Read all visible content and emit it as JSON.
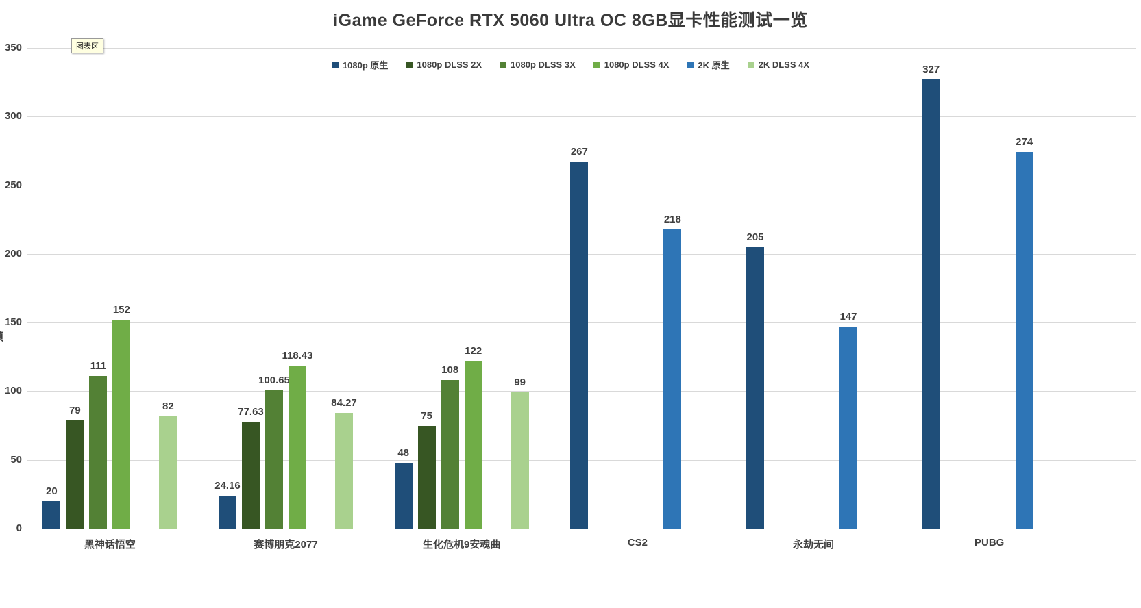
{
  "tooltip": "图表区",
  "y_axis_title_partial": "帧",
  "chart_data": {
    "type": "bar",
    "title": "iGame GeForce RTX 5060 Ultra OC 8GB显卡性能测试一览",
    "categories": [
      "黑神话悟空",
      "赛博朋克2077",
      "生化危机9安魂曲",
      "CS2",
      "永劫无间",
      "PUBG"
    ],
    "series": [
      {
        "name": "1080p 原生",
        "color": "#1F4E79",
        "values": [
          20,
          24.16,
          48,
          267,
          205,
          327
        ]
      },
      {
        "name": "1080p DLSS 2X",
        "color": "#375623",
        "values": [
          79,
          77.63,
          75,
          null,
          null,
          null
        ]
      },
      {
        "name": "1080p DLSS 3X",
        "color": "#538135",
        "values": [
          111,
          100.65,
          108,
          null,
          null,
          null
        ]
      },
      {
        "name": "1080p DLSS 4X",
        "color": "#70AD47",
        "values": [
          152,
          118.43,
          122,
          null,
          null,
          null
        ]
      },
      {
        "name": "2K 原生",
        "color": "#2E75B6",
        "values": [
          null,
          null,
          null,
          218,
          147,
          274
        ]
      },
      {
        "name": "2K DLSS 4X",
        "color": "#A9D18E",
        "values": [
          82,
          84.27,
          99,
          null,
          null,
          null
        ]
      }
    ],
    "ylim": [
      0,
      350
    ],
    "yticks": [
      0,
      50,
      100,
      150,
      200,
      250,
      300,
      350
    ],
    "grid": true,
    "legend_position": "top",
    "colors": {
      "gridline": "#d9d9d9",
      "axis_line": "#bfbfbf",
      "text": "#404040"
    }
  }
}
